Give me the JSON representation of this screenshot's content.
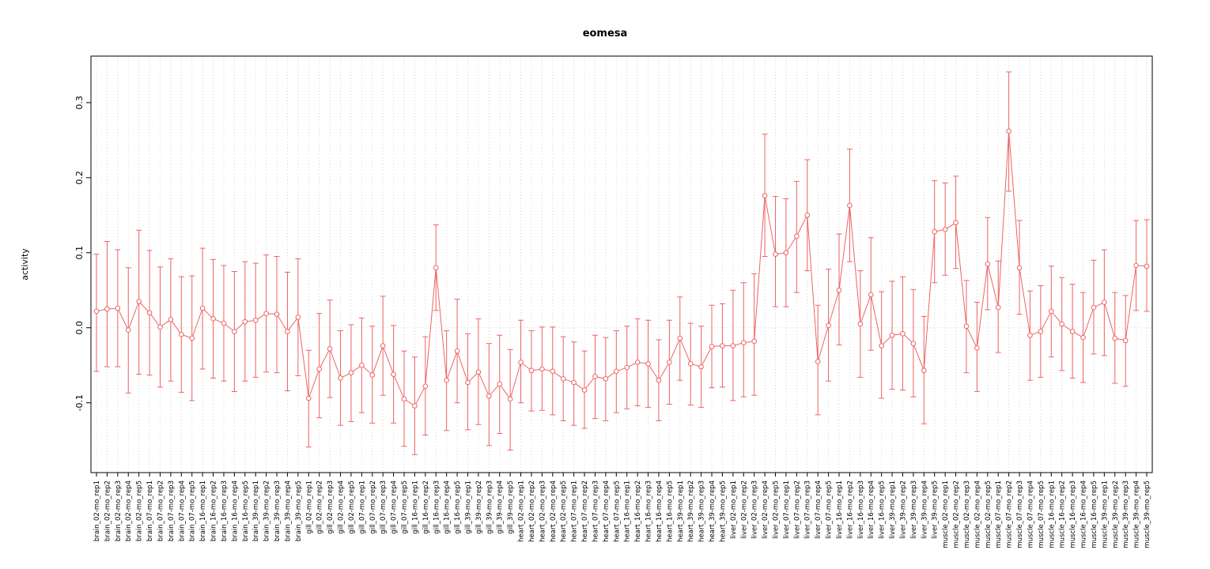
{
  "chart_data": {
    "type": "line",
    "title": "eomesa",
    "xlabel": "",
    "ylabel": "activity",
    "ylim": [
      -0.193,
      0.362
    ],
    "ytick_values": [
      -0.1,
      0.0,
      0.1,
      0.2,
      0.3
    ],
    "ytick_labels": [
      "-0.1",
      "0.0",
      "0.1",
      "0.2",
      "0.3"
    ],
    "grid": true,
    "grid_color": "#d3d3d3",
    "zero_line": true,
    "point_color": "#ee6363",
    "box_color": "#000000",
    "legend_position": "none",
    "error_bars": true,
    "categories": [
      "brain_02-mo_rep1",
      "brain_02-mo_rep2",
      "brain_02-mo_rep3",
      "brain_02-mo_rep4",
      "brain_02-mo_rep5",
      "brain_07-mo_rep1",
      "brain_07-mo_rep2",
      "brain_07-mo_rep3",
      "brain_07-mo_rep4",
      "brain_07-mo_rep5",
      "brain_16-mo_rep1",
      "brain_16-mo_rep2",
      "brain_16-mo_rep3",
      "brain_16-mo_rep4",
      "brain_16-mo_rep5",
      "brain_39-mo_rep1",
      "brain_39-mo_rep2",
      "brain_39-mo_rep3",
      "brain_39-mo_rep4",
      "brain_39-mo_rep5",
      "gill_02-mo_rep1",
      "gill_02-mo_rep2",
      "gill_02-mo_rep3",
      "gill_02-mo_rep4",
      "gill_02-mo_rep5",
      "gill_07-mo_rep1",
      "gill_07-mo_rep2",
      "gill_07-mo_rep3",
      "gill_07-mo_rep4",
      "gill_07-mo_rep5",
      "gill_16-mo_rep1",
      "gill_16-mo_rep2",
      "gill_16-mo_rep3",
      "gill_16-mo_rep4",
      "gill_16-mo_rep5",
      "gill_39-mo_rep1",
      "gill_39-mo_rep2",
      "gill_39-mo_rep3",
      "gill_39-mo_rep4",
      "gill_39-mo_rep5",
      "heart_02-mo_rep1",
      "heart_02-mo_rep2",
      "heart_02-mo_rep3",
      "heart_02-mo_rep4",
      "heart_02-mo_rep5",
      "heart_07-mo_rep1",
      "heart_07-mo_rep2",
      "heart_07-mo_rep3",
      "heart_07-mo_rep4",
      "heart_07-mo_rep5",
      "heart_16-mo_rep1",
      "heart_16-mo_rep2",
      "heart_16-mo_rep3",
      "heart_16-mo_rep4",
      "heart_16-mo_rep5",
      "heart_39-mo_rep1",
      "heart_39-mo_rep2",
      "heart_39-mo_rep3",
      "heart_39-mo_rep4",
      "heart_39-mo_rep5",
      "liver_02-mo_rep1",
      "liver_02-mo_rep2",
      "liver_02-mo_rep3",
      "liver_02-mo_rep4",
      "liver_02-mo_rep5",
      "liver_07-mo_rep1",
      "liver_07-mo_rep2",
      "liver_07-mo_rep3",
      "liver_07-mo_rep4",
      "liver_07-mo_rep5",
      "liver_16-mo_rep1",
      "liver_16-mo_rep2",
      "liver_16-mo_rep3",
      "liver_16-mo_rep4",
      "liver_16-mo_rep5",
      "liver_39-mo_rep1",
      "liver_39-mo_rep2",
      "liver_39-mo_rep3",
      "liver_39-mo_rep4",
      "liver_39-mo_rep5",
      "muscle_02-mo_rep1",
      "muscle_02-mo_rep2",
      "muscle_02-mo_rep3",
      "muscle_02-mo_rep4",
      "muscle_02-mo_rep5",
      "muscle_07-mo_rep1",
      "muscle_07-mo_rep2",
      "muscle_07-mo_rep3",
      "muscle_07-mo_rep4",
      "muscle_07-mo_rep5",
      "muscle_16-mo_rep1",
      "muscle_16-mo_rep2",
      "muscle_16-mo_rep3",
      "muscle_16-mo_rep4",
      "muscle_16-mo_rep5",
      "muscle_39-mo_rep1",
      "muscle_39-mo_rep2",
      "muscle_39-mo_rep3",
      "muscle_39-mo_rep4",
      "muscle_39-mo_rep5"
    ],
    "series": [
      {
        "name": "eomesa activity",
        "values": [
          0.022,
          0.025,
          0.026,
          -0.003,
          0.035,
          0.02,
          0.001,
          0.011,
          -0.009,
          -0.014,
          0.026,
          0.012,
          0.006,
          -0.005,
          0.008,
          0.01,
          0.019,
          0.018,
          -0.005,
          0.014,
          -0.094,
          -0.055,
          -0.028,
          -0.067,
          -0.06,
          -0.05,
          -0.063,
          -0.024,
          -0.062,
          -0.095,
          -0.104,
          -0.078,
          0.08,
          -0.07,
          -0.031,
          -0.073,
          -0.059,
          -0.091,
          -0.075,
          -0.095,
          -0.046,
          -0.057,
          -0.055,
          -0.058,
          -0.068,
          -0.073,
          -0.083,
          -0.065,
          -0.068,
          -0.058,
          -0.053,
          -0.046,
          -0.048,
          -0.07,
          -0.046,
          -0.014,
          -0.048,
          -0.052,
          -0.025,
          -0.024,
          -0.024,
          -0.02,
          -0.018,
          0.176,
          0.098,
          0.1,
          0.122,
          0.15,
          -0.045,
          0.003,
          0.05,
          0.163,
          0.005,
          0.044,
          -0.024,
          -0.01,
          -0.008,
          -0.021,
          -0.057,
          0.128,
          0.131,
          0.14,
          0.002,
          -0.027,
          0.085,
          0.027,
          0.262,
          0.08,
          -0.01,
          -0.005,
          0.022,
          0.005,
          -0.005,
          -0.013,
          0.027,
          0.034,
          -0.014,
          -0.017,
          0.083,
          0.082
        ],
        "upper": [
          0.098,
          0.115,
          0.104,
          0.08,
          0.13,
          0.103,
          0.081,
          0.092,
          0.068,
          0.069,
          0.106,
          0.091,
          0.083,
          0.075,
          0.088,
          0.086,
          0.097,
          0.095,
          0.074,
          0.092,
          -0.03,
          0.019,
          0.037,
          -0.004,
          0.004,
          0.013,
          0.002,
          0.042,
          0.003,
          -0.031,
          -0.039,
          -0.012,
          0.137,
          -0.004,
          0.038,
          -0.008,
          0.012,
          -0.021,
          -0.01,
          -0.029,
          0.01,
          -0.004,
          0.001,
          0.001,
          -0.012,
          -0.019,
          -0.031,
          -0.01,
          -0.013,
          -0.004,
          0.002,
          0.012,
          0.01,
          -0.016,
          0.01,
          0.041,
          0.006,
          0.002,
          0.03,
          0.032,
          0.05,
          0.06,
          0.072,
          0.258,
          0.175,
          0.172,
          0.195,
          0.224,
          0.03,
          0.078,
          0.125,
          0.238,
          0.076,
          0.12,
          0.048,
          0.062,
          0.068,
          0.051,
          0.015,
          0.196,
          0.193,
          0.202,
          0.063,
          0.034,
          0.147,
          0.089,
          0.341,
          0.143,
          0.049,
          0.056,
          0.082,
          0.067,
          0.058,
          0.047,
          0.09,
          0.104,
          0.047,
          0.043,
          0.143,
          0.144
        ],
        "lower": [
          -0.058,
          -0.052,
          -0.052,
          -0.087,
          -0.062,
          -0.063,
          -0.079,
          -0.071,
          -0.086,
          -0.097,
          -0.055,
          -0.067,
          -0.071,
          -0.085,
          -0.071,
          -0.066,
          -0.059,
          -0.06,
          -0.084,
          -0.064,
          -0.159,
          -0.12,
          -0.093,
          -0.13,
          -0.125,
          -0.113,
          -0.127,
          -0.09,
          -0.127,
          -0.158,
          -0.169,
          -0.143,
          0.023,
          -0.137,
          -0.1,
          -0.136,
          -0.129,
          -0.157,
          -0.141,
          -0.163,
          -0.1,
          -0.111,
          -0.11,
          -0.116,
          -0.124,
          -0.13,
          -0.134,
          -0.121,
          -0.124,
          -0.113,
          -0.108,
          -0.104,
          -0.106,
          -0.124,
          -0.102,
          -0.07,
          -0.103,
          -0.106,
          -0.08,
          -0.079,
          -0.097,
          -0.092,
          -0.09,
          0.095,
          0.028,
          0.028,
          0.047,
          0.076,
          -0.116,
          -0.071,
          -0.023,
          0.088,
          -0.066,
          -0.03,
          -0.094,
          -0.082,
          -0.083,
          -0.092,
          -0.128,
          0.06,
          0.07,
          0.079,
          -0.06,
          -0.085,
          0.024,
          -0.033,
          0.182,
          0.018,
          -0.07,
          -0.066,
          -0.039,
          -0.057,
          -0.067,
          -0.073,
          -0.035,
          -0.037,
          -0.074,
          -0.078,
          0.023,
          0.022
        ]
      }
    ]
  }
}
